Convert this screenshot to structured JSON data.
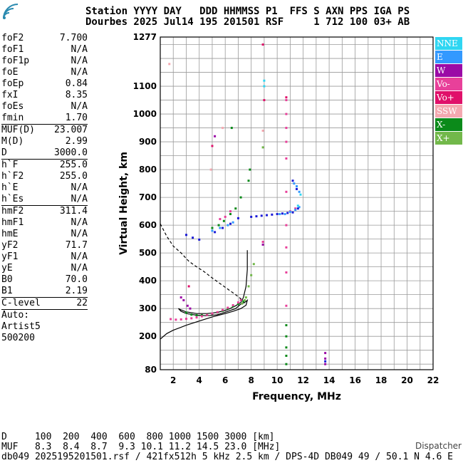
{
  "header": {
    "line1": "Station YYYY DAY   DDD HHMMSS P1  FFS S AXN PPS IGA PS",
    "line2": "Dourbes 2025 Jul14 195 201501 RSF     1 712 100 03+ AB"
  },
  "params": [
    {
      "label": "foF2",
      "value": "7.700"
    },
    {
      "label": "foF1",
      "value": "N/A"
    },
    {
      "label": "foF1p",
      "value": "N/A"
    },
    {
      "label": "foE",
      "value": "N/A"
    },
    {
      "label": "foEp",
      "value": "0.84"
    },
    {
      "label": "fxI",
      "value": "8.35"
    },
    {
      "label": "foEs",
      "value": "N/A"
    },
    {
      "label": "fmin",
      "value": "1.70"
    },
    {
      "sep": true
    },
    {
      "label": "MUF(D)",
      "value": "23.007"
    },
    {
      "label": "M(D)",
      "value": "2.99"
    },
    {
      "label": "D",
      "value": "3000.0"
    },
    {
      "sep": true
    },
    {
      "label": "h`F",
      "value": "255.0"
    },
    {
      "label": "h`F2",
      "value": "255.0"
    },
    {
      "label": "h`E",
      "value": "N/A"
    },
    {
      "label": "h`Es",
      "value": "N/A"
    },
    {
      "sep": true
    },
    {
      "label": "hmF2",
      "value": "311.4"
    },
    {
      "label": "hmF1",
      "value": "N/A"
    },
    {
      "label": "hmE",
      "value": "N/A"
    },
    {
      "label": "yF2",
      "value": "71.7"
    },
    {
      "label": "yF1",
      "value": "N/A"
    },
    {
      "label": "yE",
      "value": "N/A"
    },
    {
      "label": "B0",
      "value": "70.0"
    },
    {
      "label": "B1",
      "value": "2.19"
    },
    {
      "sep": true
    },
    {
      "label": "C-level",
      "value": "22"
    },
    {
      "sep": true
    },
    {
      "label": "Auto:",
      "value": ""
    },
    {
      "label": "Artist5",
      "value": ""
    },
    {
      "label": "500200",
      "value": ""
    }
  ],
  "legend": [
    {
      "label": "NNE",
      "color": "#2fd6f2"
    },
    {
      "label": "E",
      "color": "#3399ff"
    },
    {
      "label": "W",
      "color": "#9b0aa6"
    },
    {
      "label": "Vo-",
      "color": "#e8409a"
    },
    {
      "label": "Vo+",
      "color": "#e0106a"
    },
    {
      "label": "SSW",
      "color": "#f4a8b0"
    },
    {
      "label": "X-",
      "color": "#0b8a1a"
    },
    {
      "label": "X+",
      "color": "#72b84a"
    }
  ],
  "footer": {
    "line1": "D     100  200  400  600  800 1000 1500 3000 [km]",
    "line2": "MUF   8.3  8.4  8.7  9.3 10.1 11.2 14.5 23.0 [MHz]",
    "line3": "db049 2025195201501.rsf / 421fx512h 5 kHz 2.5 km / DPS-4D DB049 49 / 50.1 N 4.6 E"
  },
  "dispatcher": "Dispatcher",
  "chart_data": {
    "type": "scatter",
    "xlabel": "Frequency, MHz",
    "ylabel": "Virtual Height, km",
    "xlim": [
      1,
      22
    ],
    "ylim": [
      80,
      1277
    ],
    "xticks": [
      "2",
      "4",
      "6",
      "8",
      "10",
      "12",
      "14",
      "16",
      "18",
      "20",
      "22"
    ],
    "yticks": [
      "80",
      "200",
      "300",
      "400",
      "500",
      "600",
      "700",
      "800",
      "900",
      "1000",
      "1100",
      "1277"
    ],
    "grid": true,
    "series": [
      {
        "name": "X-",
        "color": "#0b8a1a",
        "points": [
          [
            3.0,
            285
          ],
          [
            3.4,
            278
          ],
          [
            3.8,
            276
          ],
          [
            4.2,
            276
          ],
          [
            4.6,
            278
          ],
          [
            5.0,
            281
          ],
          [
            5.4,
            286
          ],
          [
            5.8,
            292
          ],
          [
            6.2,
            300
          ],
          [
            6.6,
            308
          ],
          [
            7.0,
            316
          ],
          [
            7.4,
            326
          ],
          [
            5.0,
            590
          ],
          [
            5.5,
            600
          ],
          [
            5.9,
            615
          ],
          [
            6.4,
            640
          ],
          [
            6.8,
            660
          ],
          [
            7.2,
            700
          ],
          [
            7.8,
            760
          ],
          [
            7.9,
            800
          ],
          [
            6.5,
            950
          ],
          [
            10.7,
            240
          ],
          [
            10.7,
            200
          ],
          [
            10.7,
            160
          ],
          [
            10.7,
            130
          ],
          [
            10.7,
            100
          ]
        ]
      },
      {
        "name": "X+",
        "color": "#72b84a",
        "points": [
          [
            7.6,
            340
          ],
          [
            7.8,
            380
          ],
          [
            8.0,
            420
          ],
          [
            8.2,
            460
          ],
          [
            7.5,
            330
          ],
          [
            7.3,
            318
          ],
          [
            8.9,
            880
          ]
        ]
      },
      {
        "name": "Vo-",
        "color": "#e8409a",
        "points": [
          [
            1.8,
            262
          ],
          [
            2.2,
            260
          ],
          [
            2.6,
            261
          ],
          [
            3.0,
            263
          ],
          [
            3.4,
            265
          ],
          [
            3.8,
            268
          ],
          [
            4.2,
            272
          ],
          [
            4.6,
            277
          ],
          [
            5.0,
            282
          ],
          [
            5.4,
            287
          ],
          [
            5.8,
            295
          ],
          [
            6.2,
            303
          ],
          [
            6.6,
            312
          ],
          [
            7.0,
            322
          ],
          [
            7.2,
            330
          ],
          [
            10.7,
            1050
          ],
          [
            10.7,
            1000
          ],
          [
            10.7,
            950
          ],
          [
            10.7,
            900
          ],
          [
            10.7,
            840
          ],
          [
            10.7,
            720
          ],
          [
            10.7,
            600
          ],
          [
            10.7,
            520
          ],
          [
            10.7,
            430
          ],
          [
            10.7,
            310
          ],
          [
            8.9,
            540
          ],
          [
            5.6,
            622
          ],
          [
            6.0,
            630
          ],
          [
            6.4,
            650
          ],
          [
            11.0,
            650
          ],
          [
            11.4,
            660
          ]
        ]
      },
      {
        "name": "Vo+",
        "color": "#e0106a",
        "points": [
          [
            9.0,
            1050
          ],
          [
            8.9,
            1250
          ],
          [
            3.2,
            380
          ],
          [
            5.0,
            885
          ],
          [
            10.7,
            1060
          ]
        ]
      },
      {
        "name": "W",
        "color": "#9b0aa6",
        "points": [
          [
            2.8,
            330
          ],
          [
            3.1,
            310
          ],
          [
            3.3,
            300
          ],
          [
            2.6,
            340
          ],
          [
            13.7,
            140
          ],
          [
            13.7,
            120
          ],
          [
            13.7,
            100
          ],
          [
            8.9,
            530
          ],
          [
            5.2,
            920
          ]
        ]
      },
      {
        "name": "E",
        "color": "#3399ff",
        "points": [
          [
            10.2,
            640
          ],
          [
            10.6,
            640
          ],
          [
            11.0,
            648
          ],
          [
            11.4,
            655
          ],
          [
            11.7,
            665
          ],
          [
            11.5,
            740
          ],
          [
            11.7,
            720
          ],
          [
            11.3,
            750
          ],
          [
            5.0,
            580
          ],
          [
            5.6,
            590
          ],
          [
            6.2,
            600
          ],
          [
            6.6,
            610
          ]
        ]
      },
      {
        "name": "NNE",
        "color": "#2fd6f2",
        "points": [
          [
            9.0,
            1100
          ],
          [
            9.0,
            1120
          ],
          [
            11.6,
            670
          ],
          [
            11.8,
            710
          ]
        ]
      },
      {
        "name": "SSW",
        "color": "#f4a8b0",
        "points": [
          [
            1.7,
            1180
          ],
          [
            4.9,
            800
          ],
          [
            8.9,
            940
          ],
          [
            5.8,
            950
          ]
        ]
      },
      {
        "name": "blue-trace",
        "color": "#1a1ad6",
        "points": [
          [
            8.0,
            630
          ],
          [
            8.4,
            632
          ],
          [
            8.8,
            634
          ],
          [
            9.2,
            636
          ],
          [
            9.6,
            638
          ],
          [
            10.0,
            640
          ],
          [
            10.4,
            642
          ],
          [
            10.8,
            644
          ],
          [
            11.2,
            646
          ],
          [
            11.6,
            660
          ],
          [
            3.0,
            565
          ],
          [
            3.5,
            555
          ],
          [
            4.0,
            548
          ],
          [
            5.2,
            575
          ],
          [
            5.8,
            590
          ],
          [
            6.4,
            605
          ],
          [
            7.0,
            625
          ],
          [
            11.2,
            760
          ],
          [
            11.5,
            730
          ],
          [
            13.7,
            110
          ]
        ]
      }
    ],
    "profile_solid": [
      [
        1.0,
        190
      ],
      [
        1.5,
        210
      ],
      [
        2.0,
        222
      ],
      [
        3.0,
        240
      ],
      [
        4.0,
        255
      ],
      [
        5.0,
        270
      ],
      [
        6.0,
        282
      ],
      [
        6.6,
        290
      ],
      [
        7.2,
        300
      ],
      [
        7.6,
        312
      ],
      [
        7.7,
        330
      ],
      [
        7.5,
        322
      ],
      [
        7.2,
        316
      ],
      [
        6.8,
        300
      ],
      [
        6.2,
        290
      ],
      [
        5.4,
        278
      ],
      [
        4.6,
        274
      ],
      [
        3.8,
        276
      ],
      [
        3.0,
        282
      ],
      [
        2.6,
        290
      ],
      [
        2.4,
        300
      ],
      [
        2.6,
        295
      ],
      [
        3.0,
        288
      ],
      [
        3.8,
        282
      ],
      [
        4.6,
        282
      ],
      [
        5.4,
        286
      ],
      [
        6.2,
        296
      ],
      [
        6.8,
        310
      ],
      [
        7.2,
        322
      ],
      [
        7.4,
        340
      ],
      [
        7.6,
        380
      ],
      [
        7.7,
        440
      ],
      [
        7.7,
        510
      ]
    ],
    "profile_dashed": [
      [
        1.0,
        605
      ],
      [
        1.5,
        560
      ],
      [
        2.0,
        525
      ],
      [
        2.6,
        500
      ],
      [
        3.2,
        470
      ],
      [
        3.8,
        450
      ],
      [
        4.4,
        432
      ],
      [
        5.0,
        410
      ],
      [
        5.6,
        390
      ],
      [
        6.2,
        370
      ],
      [
        6.8,
        350
      ],
      [
        7.2,
        335
      ],
      [
        7.5,
        320
      ]
    ]
  }
}
